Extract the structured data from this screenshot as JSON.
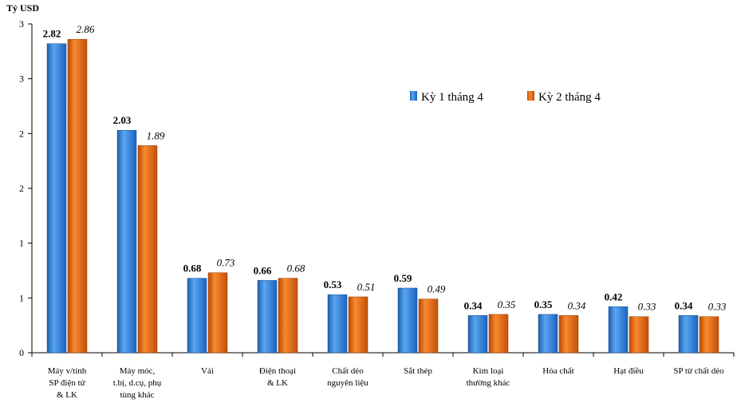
{
  "chart_data": {
    "type": "bar",
    "ylabel": "Tỷ USD",
    "y_tick_labels": [
      "0",
      "1",
      "1",
      "2",
      "2",
      "3",
      "3"
    ],
    "ylim": [
      0,
      3
    ],
    "grid": false,
    "legend_position": "upper-right",
    "categories": [
      [
        "Máy v/tính",
        "SP điện tử",
        "& LK"
      ],
      [
        "Máy móc,",
        "t.bị, d.cụ, phụ",
        "tùng khác"
      ],
      [
        "Vải"
      ],
      [
        "Điện thoại",
        "& LK"
      ],
      [
        "Chất dẻo",
        "nguyên liệu"
      ],
      [
        "Sắt thép"
      ],
      [
        "Kim loại",
        "thường khác"
      ],
      [
        "Hóa chất"
      ],
      [
        "Hạt điều"
      ],
      [
        "SP từ chất dẻo"
      ]
    ],
    "series": [
      {
        "name": "Kỳ 1 tháng 4",
        "color": "#2f7fd9",
        "values": [
          2.82,
          2.03,
          0.68,
          0.66,
          0.53,
          0.59,
          0.34,
          0.35,
          0.42,
          0.34
        ],
        "labels": [
          "2.82",
          "2.03",
          "0.68",
          "0.66",
          "0.53",
          "0.59",
          "0.34",
          "0.35",
          "0.42",
          "0.34"
        ]
      },
      {
        "name": "Kỳ 2 tháng 4",
        "color": "#e8650f",
        "values": [
          2.86,
          1.89,
          0.73,
          0.68,
          0.51,
          0.49,
          0.35,
          0.34,
          0.33,
          0.33
        ],
        "labels": [
          "2.86",
          "1.89",
          "0.73",
          "0.68",
          "0.51",
          "0.49",
          "0.35",
          "0.34",
          "0.33",
          "0.33"
        ]
      }
    ]
  }
}
